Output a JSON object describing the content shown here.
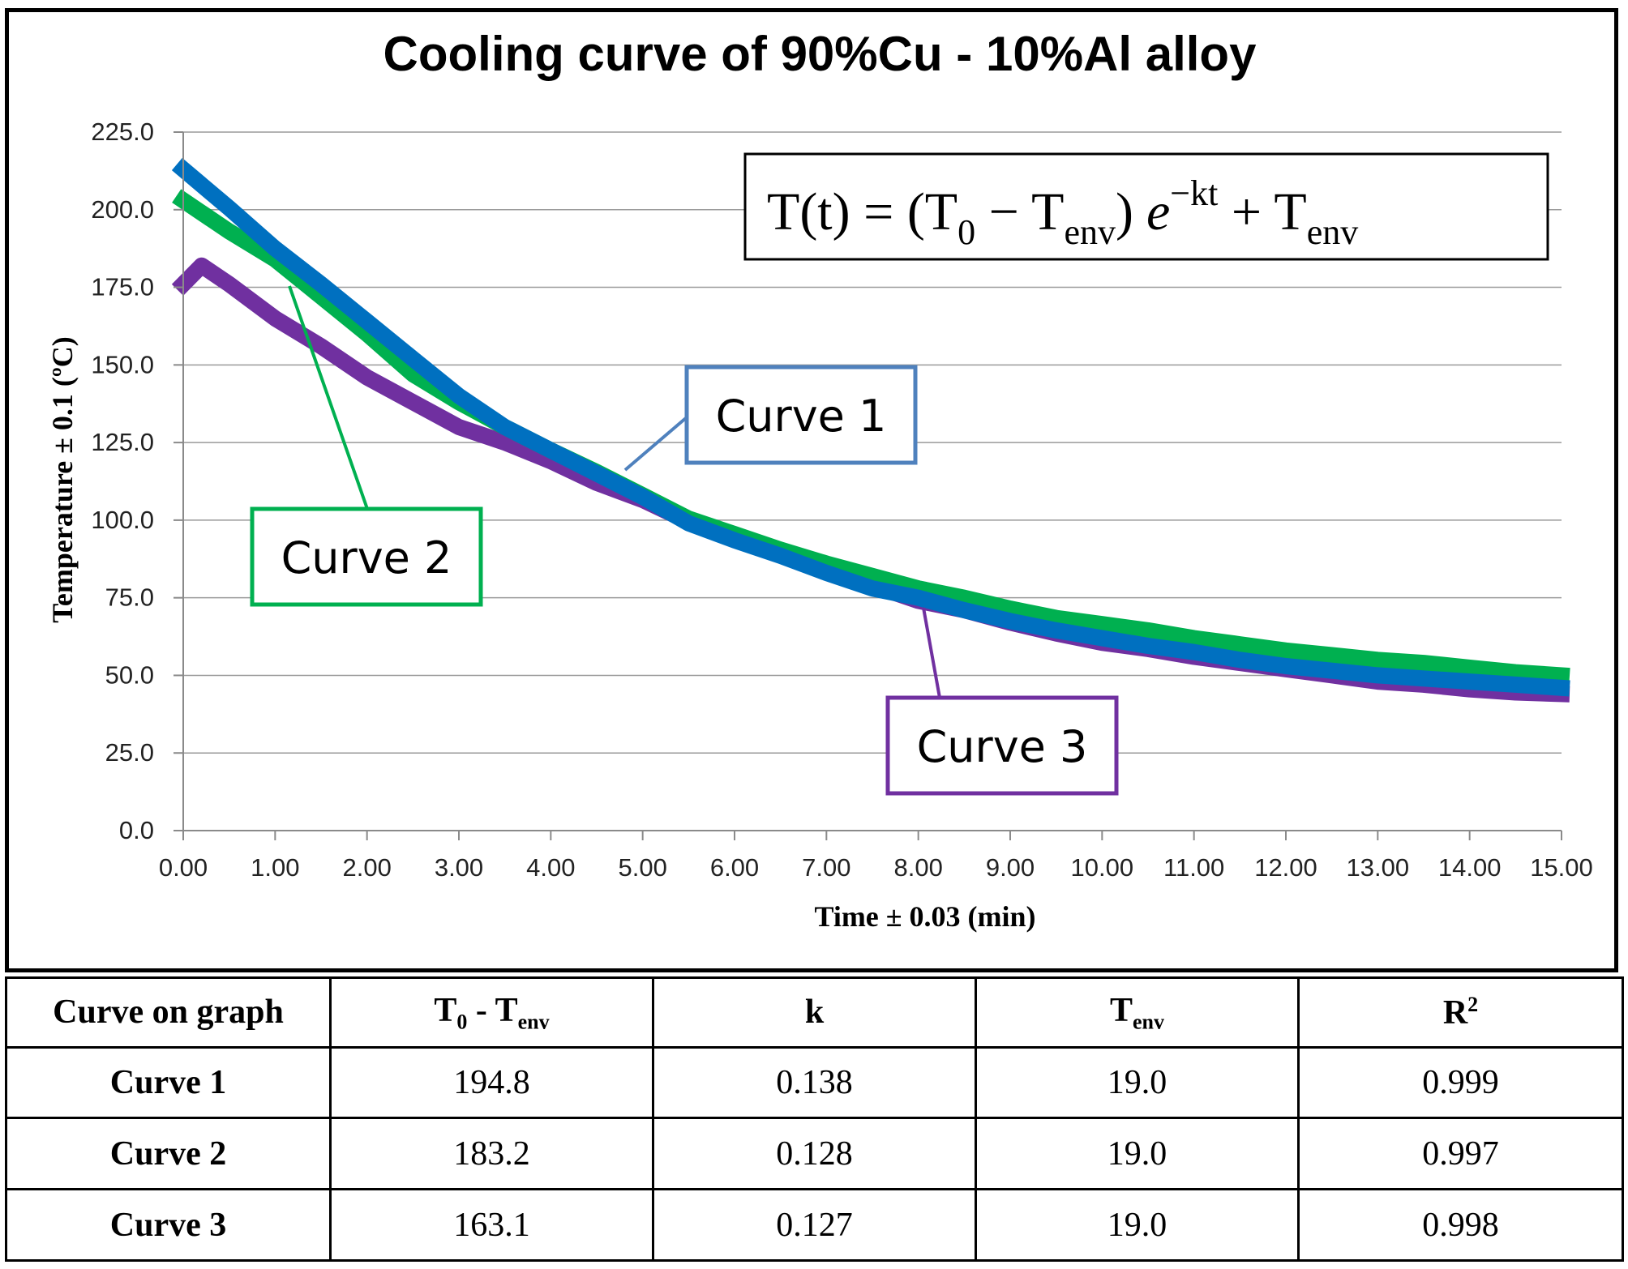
{
  "chart_data": {
    "type": "line",
    "title": "Cooling curve of 90%Cu - 10%Al alloy",
    "xlabel": "Time ± 0.03 (min)",
    "ylabel": "Temperature ± 0.1 (ºC)",
    "xlim": [
      0,
      15
    ],
    "ylim": [
      0,
      225
    ],
    "x_ticks": [
      "0.00",
      "1.00",
      "2.00",
      "3.00",
      "4.00",
      "5.00",
      "6.00",
      "7.00",
      "8.00",
      "9.00",
      "10.00",
      "11.00",
      "12.00",
      "13.00",
      "14.00",
      "15.00"
    ],
    "y_ticks": [
      "0.0",
      "25.0",
      "50.0",
      "75.0",
      "100.0",
      "125.0",
      "150.0",
      "175.0",
      "200.0",
      "225.0"
    ],
    "grid": "horizontal",
    "equation": {
      "lhs": "T(t) = (T",
      "sub0": "0",
      "minus": " − T",
      "sub_env1": "env",
      "close": ")",
      "e": "e",
      "exp": "−kt",
      "plus": " + T",
      "sub_env2": "env"
    },
    "series": [
      {
        "name": "Curve 1",
        "color": "#0070C0",
        "x": [
          0.0,
          0.5,
          1.0,
          1.5,
          2.0,
          2.5,
          3.0,
          3.5,
          4.0,
          4.5,
          5.0,
          5.5,
          6.0,
          6.5,
          7.0,
          7.5,
          8.0,
          8.5,
          9.0,
          9.5,
          10.0,
          10.5,
          11.0,
          11.5,
          12.0,
          12.5,
          13.0,
          13.5,
          14.0,
          14.5,
          15.0
        ],
        "y": [
          213.0,
          200.5,
          187.5,
          176.0,
          164.0,
          152.0,
          140.0,
          130.0,
          122.5,
          115.0,
          107.5,
          99.0,
          93.5,
          88.5,
          83.0,
          78.0,
          75.0,
          71.0,
          67.5,
          64.5,
          62.0,
          59.5,
          57.5,
          55.0,
          53.0,
          51.5,
          50.0,
          49.0,
          48.0,
          47.0,
          46.0
        ]
      },
      {
        "name": "Curve 2",
        "color": "#00B050",
        "x": [
          0.0,
          0.5,
          1.0,
          1.5,
          2.0,
          2.5,
          3.0,
          3.5,
          4.0,
          4.5,
          5.0,
          5.5,
          6.0,
          6.5,
          7.0,
          7.5,
          8.0,
          8.5,
          9.0,
          9.5,
          10.0,
          10.5,
          11.0,
          11.5,
          12.0,
          12.5,
          13.0,
          13.5,
          14.0,
          14.5,
          15.0
        ],
        "y": [
          203.0,
          193.0,
          184.0,
          172.0,
          160.0,
          147.0,
          138.0,
          130.0,
          122.5,
          115.5,
          108.0,
          100.5,
          95.5,
          90.5,
          86.0,
          82.0,
          78.0,
          75.0,
          71.5,
          68.5,
          66.5,
          64.5,
          62.0,
          60.0,
          58.0,
          56.5,
          55.0,
          54.0,
          52.5,
          51.0,
          50.0
        ]
      },
      {
        "name": "Curve 3",
        "color": "#7030A0",
        "x": [
          0.0,
          0.2,
          0.5,
          1.0,
          1.5,
          2.0,
          2.5,
          3.0,
          3.5,
          4.0,
          4.5,
          5.0,
          5.5,
          6.0,
          6.5,
          7.0,
          7.5,
          8.0,
          8.5,
          9.0,
          9.5,
          10.0,
          10.5,
          11.0,
          11.5,
          12.0,
          12.5,
          13.0,
          13.5,
          14.0,
          14.5,
          15.0
        ],
        "y": [
          176.0,
          182.0,
          176.0,
          165.0,
          156.0,
          146.0,
          138.0,
          130.0,
          125.0,
          119.0,
          112.0,
          106.5,
          99.5,
          94.0,
          89.0,
          84.0,
          79.0,
          74.0,
          71.0,
          67.0,
          63.5,
          60.5,
          58.5,
          56.0,
          54.0,
          52.0,
          50.0,
          48.0,
          47.0,
          45.5,
          44.5,
          44.0
        ]
      }
    ],
    "annotations": [
      {
        "label": "Curve 1",
        "color": "#4F81BD"
      },
      {
        "label": "Curve 2",
        "color": "#00B050"
      },
      {
        "label": "Curve 3",
        "color": "#7030A0"
      }
    ]
  },
  "table": {
    "headers": {
      "h0": "Curve on graph",
      "h1_main": "T",
      "h1_sub": "0",
      "h1_mid": " - T",
      "h1_sub2": "env",
      "h2": "k",
      "h3_main": "T",
      "h3_sub": "env",
      "h4_main": "R",
      "h4_sup": "2"
    },
    "rows": [
      {
        "name": "Curve 1",
        "t0_tenv": "194.8",
        "k": "0.138",
        "tenv": "19.0",
        "r2": "0.999"
      },
      {
        "name": "Curve 2",
        "t0_tenv": "183.2",
        "k": "0.128",
        "tenv": "19.0",
        "r2": "0.997"
      },
      {
        "name": "Curve 3",
        "t0_tenv": "163.1",
        "k": "0.127",
        "tenv": "19.0",
        "r2": "0.998"
      }
    ]
  }
}
